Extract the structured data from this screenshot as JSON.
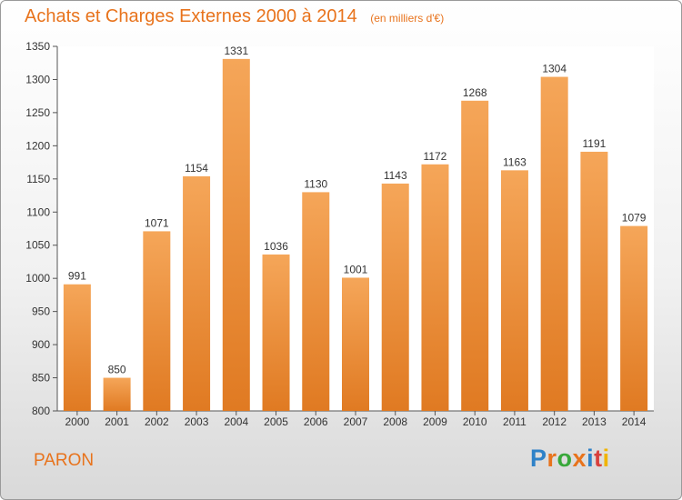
{
  "title": "Achats et Charges Externes 2000 à 2014",
  "unit_note": "(en milliers d'€)",
  "commune": "PARON",
  "logo": {
    "letters": [
      "P",
      "r",
      "o",
      "x",
      "i",
      "t",
      "i"
    ],
    "colors": [
      "#2f82c8",
      "#e8731c",
      "#38a83a",
      "#e8731c",
      "#2f82c8",
      "#d8403c",
      "#f0b400"
    ]
  },
  "colors": {
    "bar_light": "#f5a659",
    "bar_dark": "#e07a22",
    "accent": "#e8731c"
  },
  "chart_data": {
    "type": "bar",
    "categories": [
      "2000",
      "2001",
      "2002",
      "2003",
      "2004",
      "2005",
      "2006",
      "2007",
      "2008",
      "2009",
      "2010",
      "2011",
      "2012",
      "2013",
      "2014"
    ],
    "values": [
      991,
      850,
      1071,
      1154,
      1331,
      1036,
      1130,
      1001,
      1143,
      1172,
      1268,
      1163,
      1304,
      1191,
      1079
    ],
    "title": "Achats et Charges Externes 2000 à 2014",
    "ylim": [
      800,
      1350
    ],
    "yticks": [
      800,
      850,
      900,
      950,
      1000,
      1050,
      1100,
      1150,
      1200,
      1250,
      1300,
      1350
    ],
    "grid": false,
    "legend": "none"
  }
}
